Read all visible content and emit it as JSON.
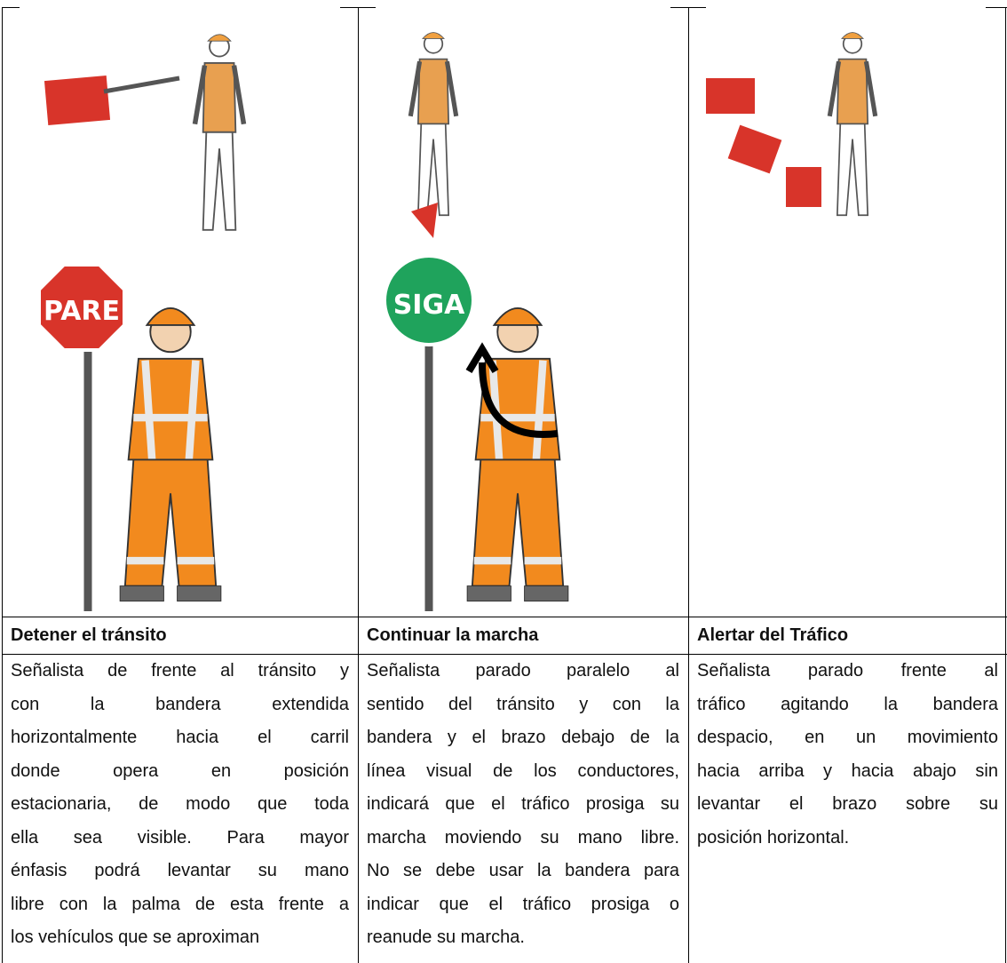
{
  "table": {
    "columns": [
      {
        "sign": "PARE",
        "heading": "Detener el tránsito",
        "description": [
          "Señalista de frente al tránsito y",
          "con la bandera extendida",
          "horizontalmente hacia el carril",
          "donde opera en posición",
          "estacionaria, de modo que toda",
          "ella sea visible. Para mayor",
          "énfasis podrá levantar su mano",
          "libre con la palma de esta frente a",
          "los vehículos que se aproximan"
        ]
      },
      {
        "sign": "SIGA",
        "heading": "Continuar la marcha",
        "description": [
          "Señalista parado paralelo al",
          "sentido del tránsito y con la",
          "bandera y el brazo debajo de la",
          "línea visual de los conductores,",
          "indicará que el tráfico prosiga su",
          "marcha moviendo su mano libre.",
          "No se debe usar la bandera para",
          "indicar que el tráfico prosiga o",
          "reanude su marcha."
        ]
      },
      {
        "heading": "Alertar del Tráfico",
        "description": [
          "Señalista parado frente al",
          "tráfico agitando la bandera",
          "despacio, en un movimiento",
          "hacia arriba y hacia abajo sin",
          "levantar el brazo sobre su",
          "posición horizontal."
        ]
      }
    ]
  }
}
